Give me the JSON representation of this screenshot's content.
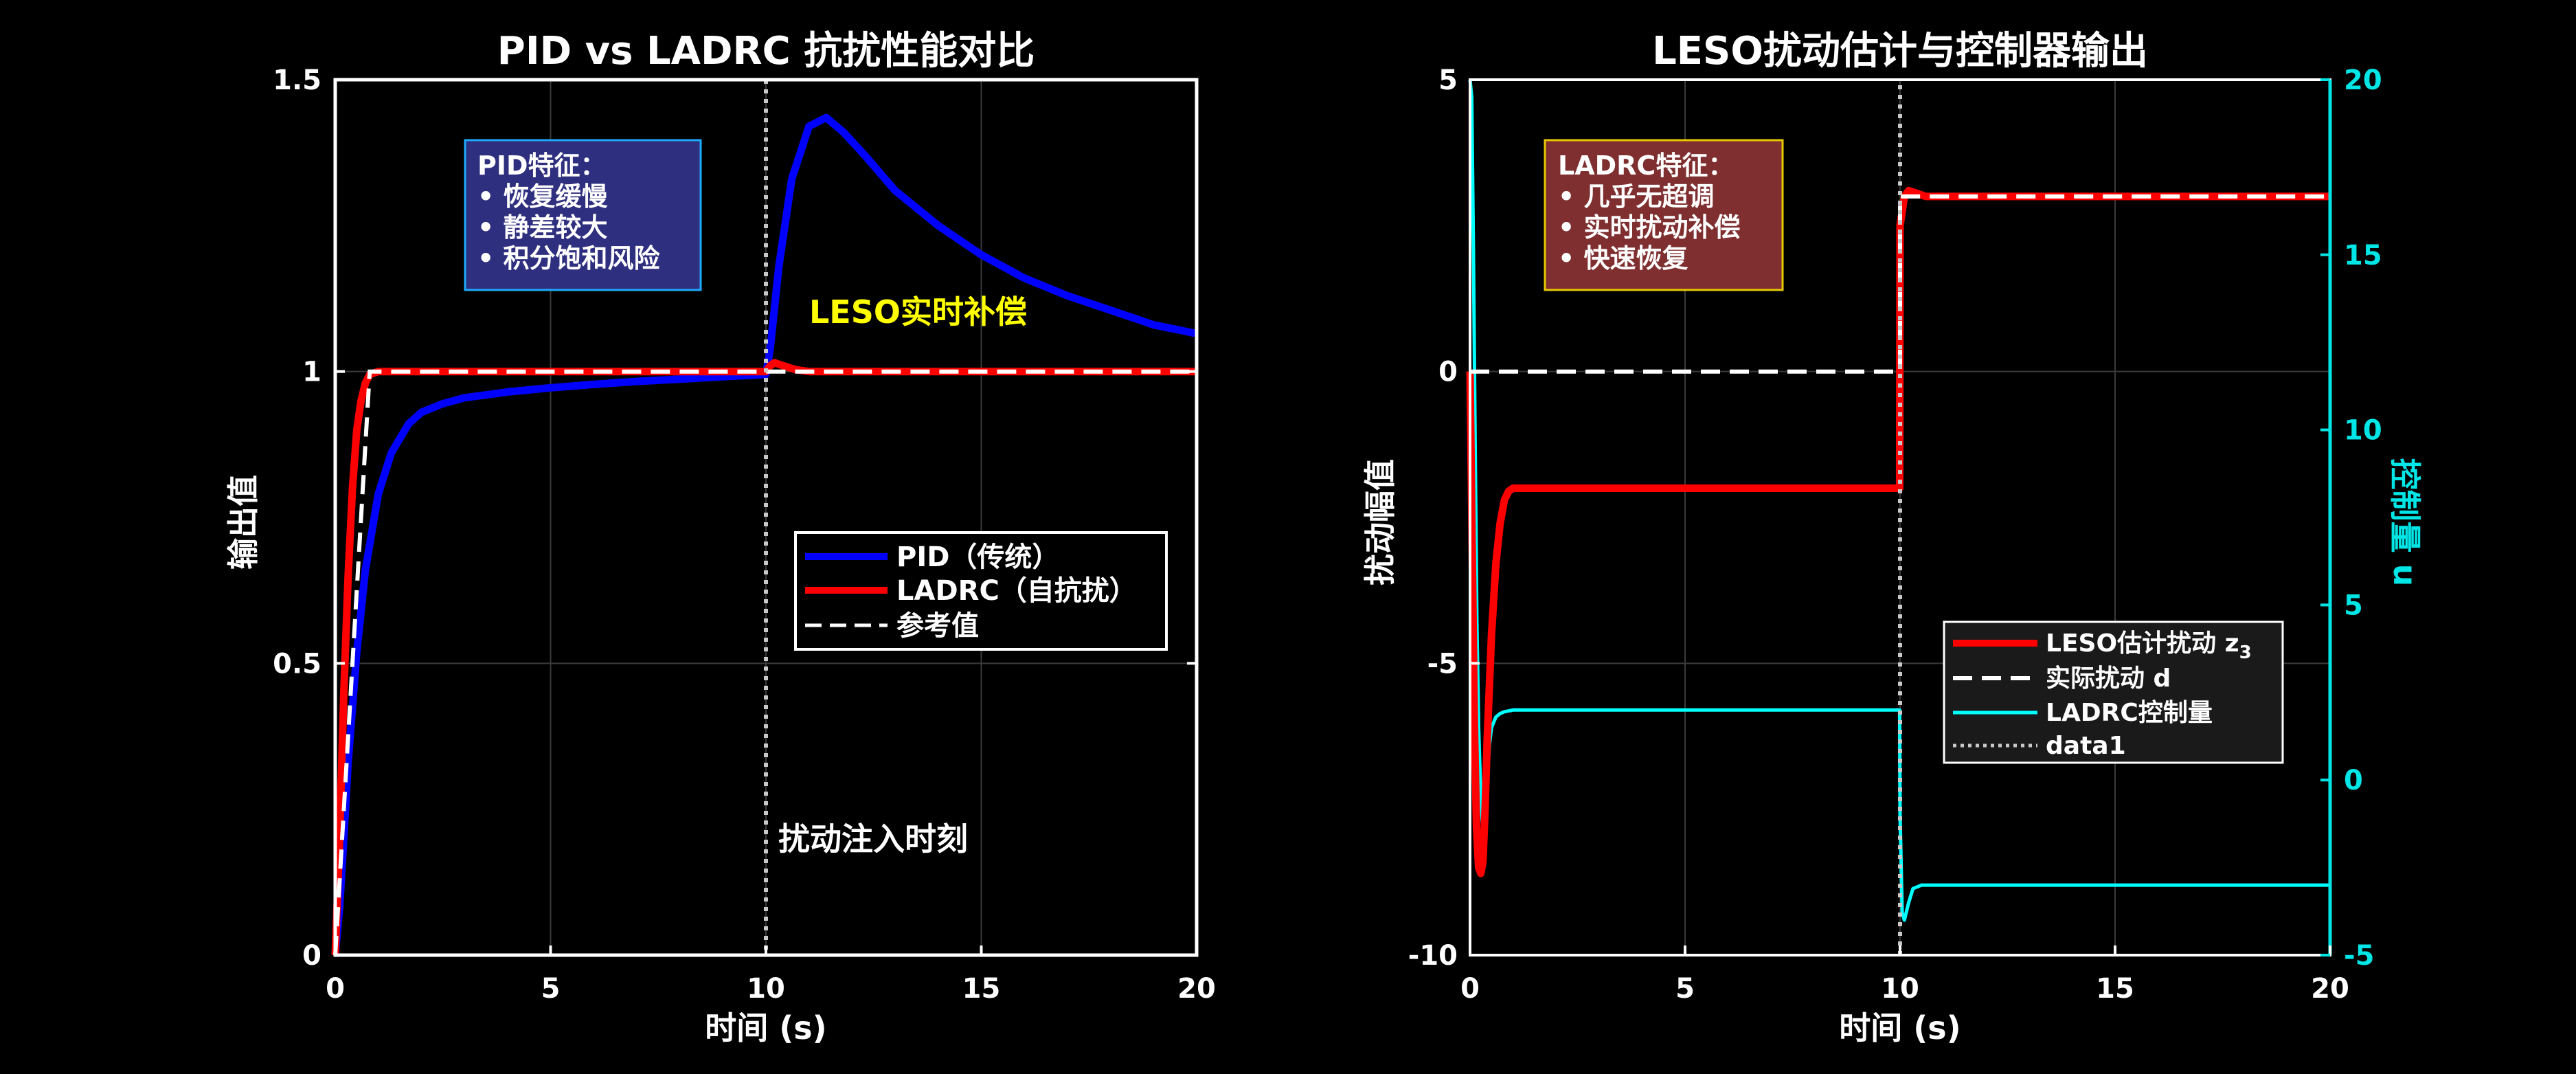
{
  "chart_data": [
    {
      "type": "line",
      "title": "PID vs LADRC 抗扰性能对比",
      "xlabel": "时间 (s)",
      "ylabel": "输出值",
      "xlim": [
        0,
        20
      ],
      "ylim": [
        0,
        1.5
      ],
      "xticks": [
        "0",
        "5",
        "10",
        "15",
        "20"
      ],
      "yticks": [
        "0",
        "0.5",
        "1",
        "1.5"
      ],
      "grid": true,
      "series": [
        {
          "name": "PID（传统）",
          "color": "#0000ff",
          "x": [
            0,
            0.1,
            0.2,
            0.3,
            0.5,
            0.7,
            1.0,
            1.3,
            1.7,
            2.0,
            2.5,
            3.0,
            4.0,
            5.0,
            6.0,
            7.0,
            8.0,
            9.0,
            10.0,
            10.1,
            10.3,
            10.6,
            11.0,
            11.4,
            11.8,
            12.3,
            13.0,
            14.0,
            15.0,
            16.0,
            17.0,
            18.0,
            19.0,
            20.0
          ],
          "y": [
            0,
            0.08,
            0.2,
            0.33,
            0.52,
            0.66,
            0.79,
            0.86,
            0.91,
            0.93,
            0.945,
            0.955,
            0.965,
            0.972,
            0.978,
            0.983,
            0.987,
            0.991,
            0.995,
            1.04,
            1.18,
            1.33,
            1.42,
            1.435,
            1.41,
            1.37,
            1.31,
            1.25,
            1.2,
            1.16,
            1.13,
            1.105,
            1.08,
            1.065
          ]
        },
        {
          "name": "LADRC（自抗扰）",
          "color": "#ff0000",
          "x": [
            0,
            0.1,
            0.2,
            0.3,
            0.4,
            0.5,
            0.6,
            0.7,
            0.8,
            1.0,
            2.0,
            5.0,
            9.0,
            10.0,
            10.1,
            10.2,
            10.4,
            10.7,
            11.0,
            12.0,
            15.0,
            20.0
          ],
          "y": [
            0,
            0.2,
            0.45,
            0.65,
            0.8,
            0.9,
            0.95,
            0.98,
            0.995,
            1.0,
            1.0,
            1.0,
            1.0,
            1.0,
            1.01,
            1.015,
            1.01,
            1.003,
            1.0,
            1.0,
            1.0,
            1.0
          ]
        },
        {
          "name": "参考值",
          "color": "#ffffff",
          "dashed": true,
          "x": [
            0,
            0.8,
            20
          ],
          "y": [
            0,
            1,
            1
          ]
        }
      ],
      "vline_x": 10,
      "info_box": {
        "lines": [
          "PID特征：",
          "• 恢复缓慢",
          "• 静差较大",
          "• 积分饱和风险"
        ]
      },
      "annotations": {
        "compensation": "LESO实时补偿",
        "disturbance": "扰动注入时刻"
      },
      "legend_placement": "center-right"
    },
    {
      "type": "line",
      "title": "LESO扰动估计与控制器输出",
      "xlabel": "时间 (s)",
      "ylabel": "扰动幅值",
      "ylabel_right": "控制量 u",
      "xlim": [
        0,
        20
      ],
      "ylim": [
        -10,
        5
      ],
      "ylim_right": [
        -5,
        20
      ],
      "xticks": [
        "0",
        "5",
        "10",
        "15",
        "20"
      ],
      "yticks": [
        "-10",
        "-5",
        "0",
        "5"
      ],
      "yticks_right": [
        "-5",
        "0",
        "5",
        "10",
        "15",
        "20"
      ],
      "grid": true,
      "series": [
        {
          "name": "LESO估计扰动 z",
          "name_sub": "3",
          "color": "#ff0000",
          "axis": "left",
          "x": [
            0,
            0.05,
            0.1,
            0.15,
            0.2,
            0.25,
            0.3,
            0.35,
            0.4,
            0.5,
            0.6,
            0.7,
            0.8,
            0.9,
            1.0,
            1.2,
            1.5,
            2.0,
            5.0,
            9.99,
            10.0,
            10.1,
            10.2,
            10.4,
            10.6,
            10.8,
            11.0,
            12.0,
            20.0
          ],
          "y": [
            0,
            -3.0,
            -6.0,
            -7.8,
            -8.5,
            -8.6,
            -8.4,
            -7.5,
            -6.3,
            -4.5,
            -3.3,
            -2.6,
            -2.2,
            -2.05,
            -2.0,
            -2.0,
            -2.0,
            -2.0,
            -2.0,
            -2.0,
            2.5,
            3.0,
            3.1,
            3.05,
            3.0,
            3.0,
            3.0,
            3.0,
            3.0
          ]
        },
        {
          "name": "实际扰动 d",
          "color": "#ffffff",
          "dashed": true,
          "axis": "left",
          "x": [
            0,
            10,
            10,
            20
          ],
          "y": [
            0,
            0,
            3,
            3
          ]
        },
        {
          "name": "LADRC控制量",
          "color": "#00ffff",
          "axis": "right",
          "x": [
            0,
            0.04,
            0.08,
            0.12,
            0.16,
            0.2,
            0.25,
            0.3,
            0.35,
            0.4,
            0.45,
            0.5,
            0.6,
            0.7,
            0.8,
            1.0,
            1.2,
            1.5,
            2.0,
            5.0,
            9.99,
            10.0,
            10.05,
            10.1,
            10.2,
            10.3,
            10.5,
            11.0,
            12.0,
            20.0
          ],
          "y": [
            20,
            19.5,
            15.0,
            9.5,
            4.5,
            1.5,
            -0.5,
            -1.5,
            -1.0,
            0.0,
            1.0,
            1.5,
            1.8,
            1.9,
            1.95,
            2.0,
            2.0,
            2.0,
            2.0,
            2.0,
            2.0,
            -1.0,
            -3.8,
            -4.0,
            -3.5,
            -3.1,
            -3.0,
            -3.0,
            -3.0,
            -3.0
          ]
        },
        {
          "name": "data1",
          "color": "#c8c8c8",
          "dotted": true,
          "axis": "left",
          "x": [
            10,
            10
          ],
          "y": [
            -10,
            5
          ]
        }
      ],
      "info_box": {
        "lines": [
          "LADRC特征：",
          "• 几乎无超调",
          "• 实时扰动补偿",
          "• 快速恢复"
        ]
      },
      "legend_placement": "lower-right"
    }
  ]
}
